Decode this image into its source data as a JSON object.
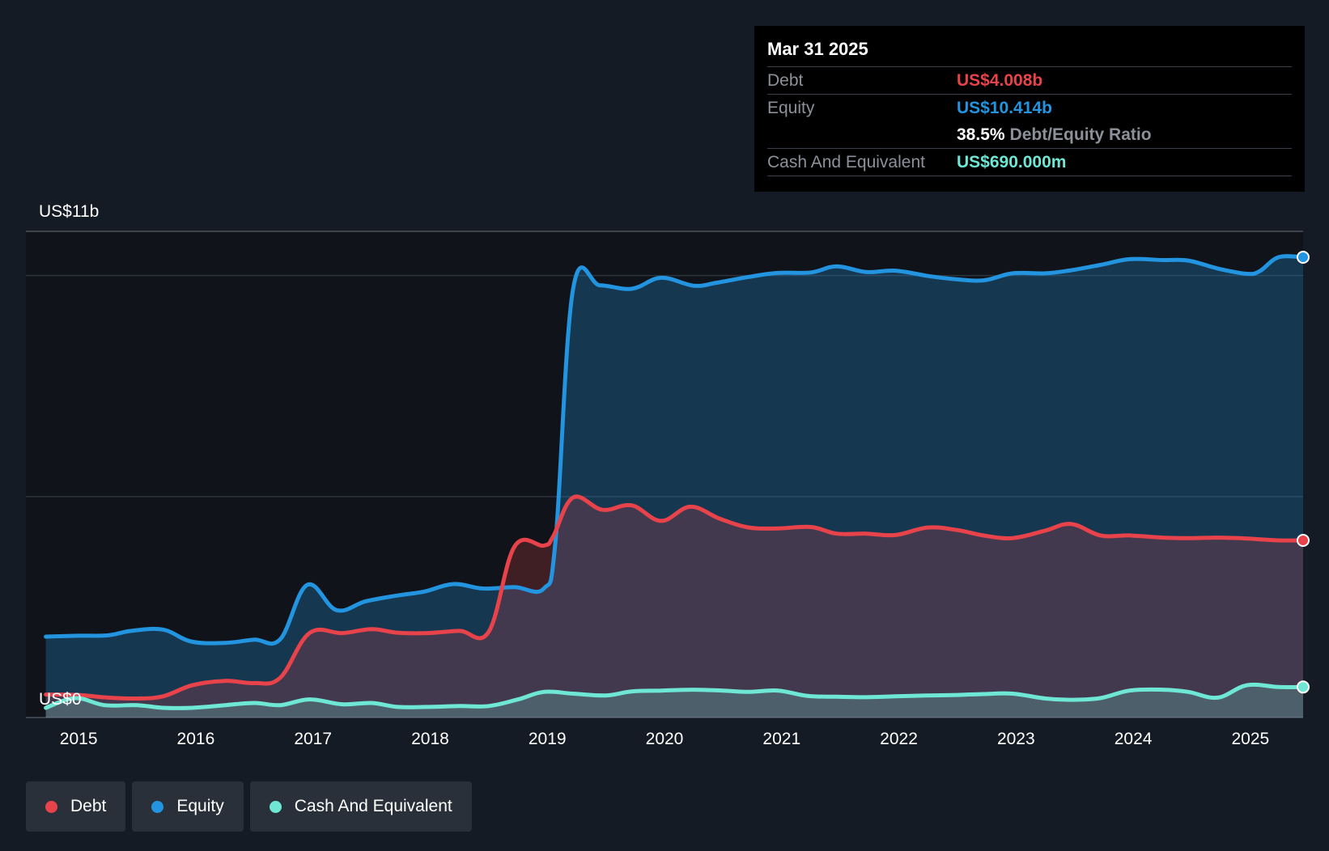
{
  "tooltip": {
    "date": "Mar 31 2025",
    "debt_label": "Debt",
    "debt_value": "US$4.008b",
    "equity_label": "Equity",
    "equity_value": "US$10.414b",
    "ratio_value": "38.5%",
    "ratio_label": "Debt/Equity Ratio",
    "cash_label": "Cash And Equivalent",
    "cash_value": "US$690.000m"
  },
  "legend": {
    "debt": "Debt",
    "equity": "Equity",
    "cash": "Cash And Equivalent"
  },
  "colors": {
    "debt": "#e8434b",
    "equity": "#2394df",
    "cash": "#6ee7d4",
    "background": "#151b24",
    "plot_background": "#10141a",
    "gridline": "#2c333d"
  },
  "chart_data": {
    "type": "area",
    "title": "",
    "xlabel": "",
    "ylabel": "",
    "ylim": [
      0,
      11
    ],
    "y_unit": "US$ billions",
    "y_tick_labels": [
      {
        "value": 11,
        "label": "US$11b"
      },
      {
        "value": 0,
        "label": "US$0"
      }
    ],
    "y_gridlines": [
      5,
      10
    ],
    "x_range": [
      2014.55,
      2025.45
    ],
    "x_ticks": [
      2015,
      2016,
      2017,
      2018,
      2019,
      2020,
      2021,
      2022,
      2023,
      2024,
      2025
    ],
    "series": [
      {
        "name": "Equity",
        "key": "equity",
        "points": [
          [
            2014.72,
            1.83
          ],
          [
            2015.0,
            1.85
          ],
          [
            2015.25,
            1.86
          ],
          [
            2015.45,
            1.96
          ],
          [
            2015.72,
            1.99
          ],
          [
            2015.96,
            1.72
          ],
          [
            2016.25,
            1.69
          ],
          [
            2016.5,
            1.76
          ],
          [
            2016.72,
            1.77
          ],
          [
            2016.95,
            3.0
          ],
          [
            2017.2,
            2.43
          ],
          [
            2017.45,
            2.63
          ],
          [
            2017.72,
            2.76
          ],
          [
            2017.95,
            2.85
          ],
          [
            2018.2,
            3.02
          ],
          [
            2018.45,
            2.92
          ],
          [
            2018.72,
            2.95
          ],
          [
            2018.97,
            2.92
          ],
          [
            2019.07,
            4.0
          ],
          [
            2019.22,
            9.7
          ],
          [
            2019.45,
            9.78
          ],
          [
            2019.72,
            9.7
          ],
          [
            2019.97,
            9.95
          ],
          [
            2020.25,
            9.77
          ],
          [
            2020.45,
            9.84
          ],
          [
            2020.72,
            9.97
          ],
          [
            2020.97,
            10.06
          ],
          [
            2021.25,
            10.07
          ],
          [
            2021.47,
            10.21
          ],
          [
            2021.72,
            10.08
          ],
          [
            2021.97,
            10.11
          ],
          [
            2022.25,
            9.99
          ],
          [
            2022.47,
            9.92
          ],
          [
            2022.72,
            9.89
          ],
          [
            2022.97,
            10.05
          ],
          [
            2023.25,
            10.05
          ],
          [
            2023.47,
            10.12
          ],
          [
            2023.72,
            10.24
          ],
          [
            2023.97,
            10.37
          ],
          [
            2024.25,
            10.35
          ],
          [
            2024.47,
            10.34
          ],
          [
            2024.72,
            10.16
          ],
          [
            2024.97,
            10.04
          ],
          [
            2025.08,
            10.1
          ],
          [
            2025.24,
            10.414
          ]
        ]
      },
      {
        "name": "Debt",
        "key": "debt",
        "points": [
          [
            2014.72,
            0.52
          ],
          [
            2015.0,
            0.51
          ],
          [
            2015.25,
            0.45
          ],
          [
            2015.5,
            0.43
          ],
          [
            2015.72,
            0.48
          ],
          [
            2015.97,
            0.73
          ],
          [
            2016.25,
            0.83
          ],
          [
            2016.5,
            0.78
          ],
          [
            2016.72,
            0.9
          ],
          [
            2016.97,
            1.91
          ],
          [
            2017.25,
            1.91
          ],
          [
            2017.5,
            2.0
          ],
          [
            2017.72,
            1.92
          ],
          [
            2017.97,
            1.91
          ],
          [
            2018.25,
            1.96
          ],
          [
            2018.5,
            1.94
          ],
          [
            2018.72,
            3.87
          ],
          [
            2018.97,
            3.89
          ],
          [
            2019.05,
            4.1
          ],
          [
            2019.22,
            4.98
          ],
          [
            2019.47,
            4.7
          ],
          [
            2019.72,
            4.8
          ],
          [
            2019.97,
            4.45
          ],
          [
            2020.22,
            4.77
          ],
          [
            2020.47,
            4.5
          ],
          [
            2020.72,
            4.3
          ],
          [
            2020.97,
            4.28
          ],
          [
            2021.25,
            4.31
          ],
          [
            2021.47,
            4.16
          ],
          [
            2021.72,
            4.16
          ],
          [
            2021.97,
            4.13
          ],
          [
            2022.25,
            4.3
          ],
          [
            2022.5,
            4.24
          ],
          [
            2022.72,
            4.12
          ],
          [
            2022.97,
            4.06
          ],
          [
            2023.25,
            4.23
          ],
          [
            2023.47,
            4.38
          ],
          [
            2023.72,
            4.12
          ],
          [
            2023.97,
            4.12
          ],
          [
            2024.25,
            4.07
          ],
          [
            2024.5,
            4.06
          ],
          [
            2024.72,
            4.07
          ],
          [
            2024.97,
            4.05
          ],
          [
            2025.24,
            4.008
          ]
        ]
      },
      {
        "name": "Cash And Equivalent",
        "key": "cash",
        "points": [
          [
            2014.72,
            0.22
          ],
          [
            2014.97,
            0.44
          ],
          [
            2015.22,
            0.28
          ],
          [
            2015.5,
            0.28
          ],
          [
            2015.72,
            0.22
          ],
          [
            2015.97,
            0.22
          ],
          [
            2016.25,
            0.28
          ],
          [
            2016.5,
            0.33
          ],
          [
            2016.72,
            0.28
          ],
          [
            2016.97,
            0.41
          ],
          [
            2017.25,
            0.3
          ],
          [
            2017.5,
            0.33
          ],
          [
            2017.72,
            0.24
          ],
          [
            2017.97,
            0.24
          ],
          [
            2018.25,
            0.26
          ],
          [
            2018.5,
            0.26
          ],
          [
            2018.75,
            0.41
          ],
          [
            2018.97,
            0.58
          ],
          [
            2019.22,
            0.54
          ],
          [
            2019.5,
            0.5
          ],
          [
            2019.72,
            0.59
          ],
          [
            2019.97,
            0.61
          ],
          [
            2020.25,
            0.63
          ],
          [
            2020.5,
            0.61
          ],
          [
            2020.72,
            0.58
          ],
          [
            2020.97,
            0.61
          ],
          [
            2021.22,
            0.49
          ],
          [
            2021.47,
            0.47
          ],
          [
            2021.72,
            0.46
          ],
          [
            2021.97,
            0.48
          ],
          [
            2022.25,
            0.5
          ],
          [
            2022.5,
            0.51
          ],
          [
            2022.72,
            0.53
          ],
          [
            2022.97,
            0.54
          ],
          [
            2023.25,
            0.43
          ],
          [
            2023.47,
            0.4
          ],
          [
            2023.72,
            0.44
          ],
          [
            2023.97,
            0.61
          ],
          [
            2024.25,
            0.63
          ],
          [
            2024.47,
            0.58
          ],
          [
            2024.72,
            0.45
          ],
          [
            2024.97,
            0.73
          ],
          [
            2025.24,
            0.69
          ]
        ]
      }
    ]
  }
}
